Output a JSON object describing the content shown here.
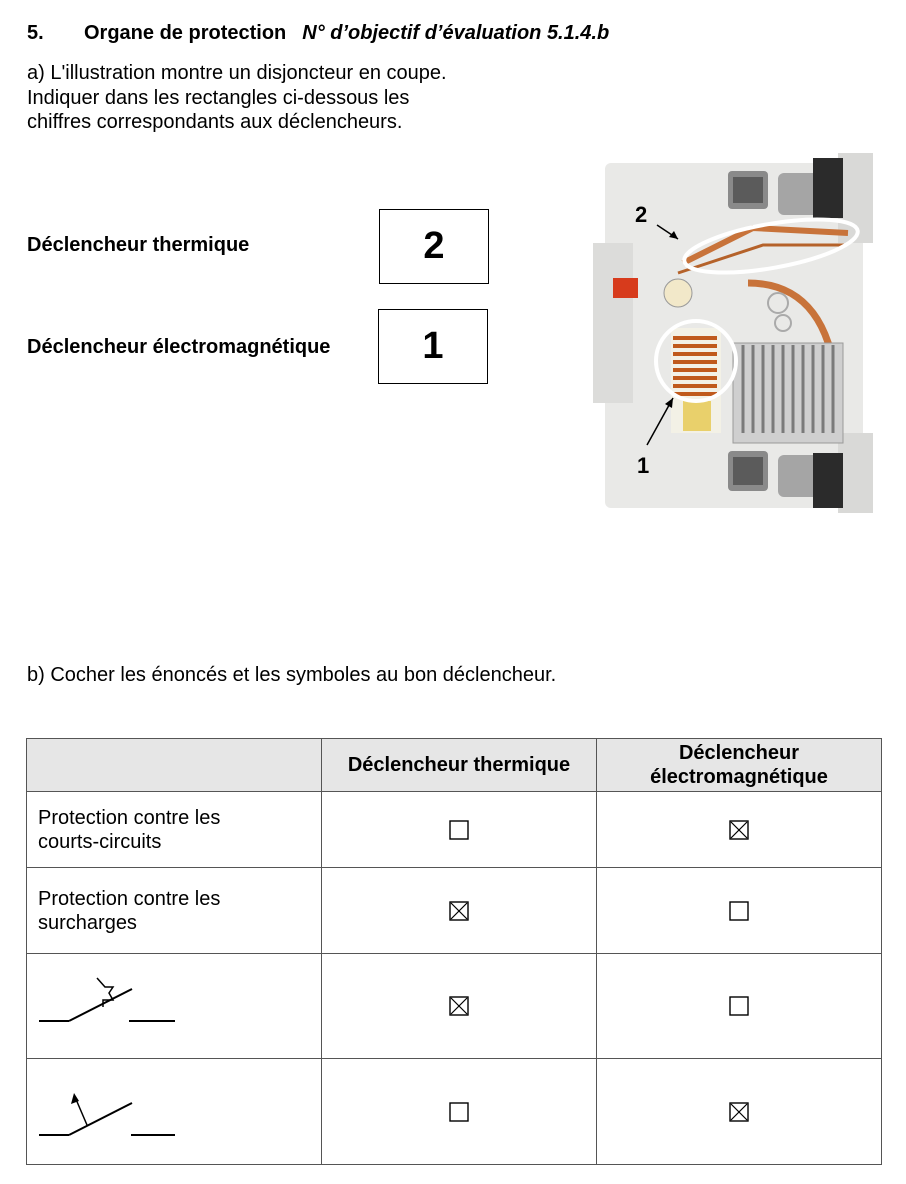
{
  "heading": {
    "number": "5.",
    "title": "Organe de protection",
    "objective": "N° d’objectif d’évaluation 5.1.4.b"
  },
  "part_a": {
    "lines": [
      "a) L'illustration montre un disjoncteur en coupe.",
      "Indiquer dans les rectangles ci-dessous les",
      "chiffres correspondants aux déclencheurs."
    ],
    "answers": [
      {
        "label": "Déclencheur thermique",
        "value": "2"
      },
      {
        "label": "Déclencheur électromagnétique",
        "value": "1"
      }
    ],
    "photo": {
      "callout_thermal": "2",
      "callout_magnetic": "1"
    }
  },
  "part_b": {
    "instruction": "b) Cocher les énoncés et les symboles au bon déclencheur.",
    "table": {
      "headers": [
        "",
        "Déclencheur thermique",
        "Déclencheur électromagnétique"
      ],
      "rows": [
        {
          "label": "Protection contre les courts-circuits",
          "thermal_checked": false,
          "magnetic_checked": true
        },
        {
          "label": "Protection contre les surcharges",
          "thermal_checked": true,
          "magnetic_checked": false
        },
        {
          "label": "",
          "symbol": "thermal-trip-symbol",
          "thermal_checked": true,
          "magnetic_checked": false
        },
        {
          "label": "",
          "symbol": "magnetic-trip-symbol",
          "thermal_checked": false,
          "magnetic_checked": true
        }
      ]
    }
  },
  "colors": {
    "header_bg": "#e6e6e6",
    "highlight_ellipse": "#ffffff",
    "copper": "#c8733a"
  }
}
